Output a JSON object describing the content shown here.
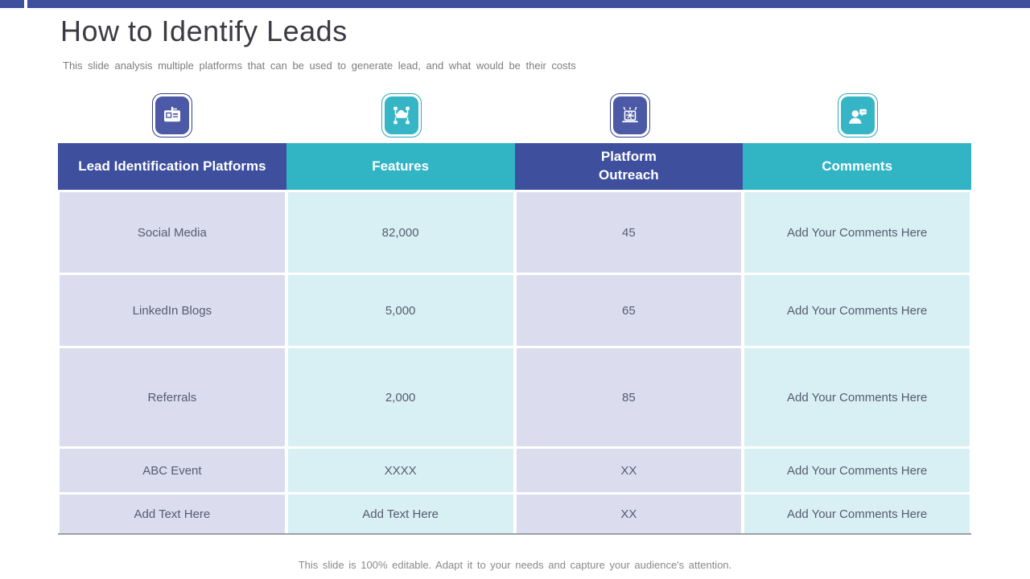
{
  "slide": {
    "title": "How to Identify Leads",
    "subtitle": "This slide analysis multiple platforms that can be used to generate lead, and what would be their costs",
    "footer": "This slide is 100% editable. Adapt it to your needs and capture your audience's attention."
  },
  "icons": [
    {
      "name": "id-badge-icon",
      "color": "#4B59A6"
    },
    {
      "name": "cloud-network-icon",
      "color": "#35B5C5"
    },
    {
      "name": "laptop-gear-icon",
      "color": "#4B59A6"
    },
    {
      "name": "user-comment-icon",
      "color": "#35B5C5"
    }
  ],
  "table": {
    "headers": [
      "Lead Identification Platforms",
      "Features",
      "Platform\nOutreach",
      "Comments"
    ],
    "rows": [
      [
        "Social Media",
        "82,000",
        "45",
        "Add Your Comments Here"
      ],
      [
        "LinkedIn Blogs",
        "5,000",
        "65",
        "Add Your Comments Here"
      ],
      [
        "Referrals",
        "2,000",
        "85",
        "Add Your Comments Here"
      ],
      [
        "ABC Event",
        "XXXX",
        "XX",
        "Add Your Comments Here"
      ],
      [
        "Add Text Here",
        "Add Text Here",
        "XX",
        "Add Your Comments Here"
      ]
    ]
  },
  "colors": {
    "accent_bar": "#3E4F9E",
    "header_blue": "#3E4F9E",
    "header_teal": "#31B4C4",
    "cell_lavender": "#DBDDEF",
    "cell_cyan": "#D8F0F4",
    "cell_text": "#565B6E",
    "icon_blue": "#4B59A6",
    "icon_teal": "#35B5C5",
    "table_rule": "#9AA0AB"
  }
}
